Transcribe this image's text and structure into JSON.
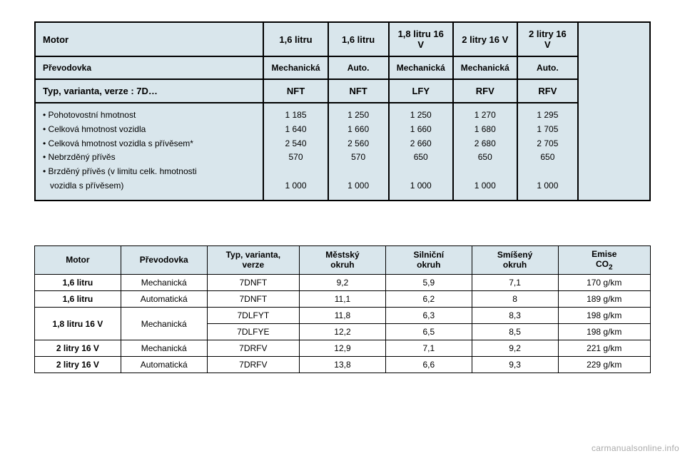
{
  "table1": {
    "header_motor": "Motor",
    "engines": [
      "1,6 litru",
      "1,6 litru",
      "1,8 litru 16 V",
      "2 litry 16 V",
      "2 litry 16 V"
    ],
    "header_prevodovka": "Převodovka",
    "gearboxes": [
      "Mechanická",
      "Auto.",
      "Mechanická",
      "Mechanická",
      "Auto."
    ],
    "header_typ": "Typ, varianta, verze : 7D…",
    "codes": [
      "NFT",
      "NFT",
      "LFY",
      "RFV",
      "RFV"
    ],
    "labels": [
      "Pohotovostní hmotnost",
      "Celková hmotnost vozidla",
      "Celková hmotnost vozidla s přívěsem*",
      "Nebrzděný přívěs",
      "Brzděný přívěs (v limitu celk. hmotnosti",
      "vozidla s přívěsem)"
    ],
    "col1": [
      "1 185",
      "1 640",
      "2 540",
      "570",
      "",
      "1 000"
    ],
    "col2": [
      "1 250",
      "1 660",
      "2 560",
      "570",
      "",
      "1 000"
    ],
    "col3": [
      "1 250",
      "1 660",
      "2 660",
      "650",
      "",
      "1 000"
    ],
    "col4": [
      "1 270",
      "1 680",
      "2 680",
      "650",
      "",
      "1 000"
    ],
    "col5": [
      "1 295",
      "1 705",
      "2 705",
      "650",
      "",
      "1 000"
    ]
  },
  "table2": {
    "headers": [
      "Motor",
      "Převodovka",
      "Typ, varianta,\nverze",
      "Městský\nokruh",
      "Silniční\nokruh",
      "Smíšený\nokruh",
      "Emise\nCO₂"
    ],
    "rows": [
      {
        "motor": "1,6 litru",
        "gear": "Mechanická",
        "typ": "7DNFT",
        "m": "9,2",
        "s": "5,9",
        "sm": "7,1",
        "co2": "170 g/km"
      },
      {
        "motor": "1,6 litru",
        "gear": "Automatická",
        "typ": "7DNFT",
        "m": "11,1",
        "s": "6,2",
        "sm": "8",
        "co2": "189 g/km"
      }
    ],
    "row18": {
      "motor": "1,8 litru 16 V",
      "gear": "Mechanická",
      "sub": [
        {
          "typ": "7DLFYT",
          "m": "11,8",
          "s": "6,3",
          "sm": "8,3",
          "co2": "198 g/km"
        },
        {
          "typ": "7DLFYE",
          "m": "12,2",
          "s": "6,5",
          "sm": "8,5",
          "co2": "198 g/km"
        }
      ]
    },
    "rows2": [
      {
        "motor": "2 litry 16 V",
        "gear": "Mechanická",
        "typ": "7DRFV",
        "m": "12,9",
        "s": "7,1",
        "sm": "9,2",
        "co2": "221 g/km"
      },
      {
        "motor": "2 litry 16 V",
        "gear": "Automatická",
        "typ": "7DRFV",
        "m": "13,8",
        "s": "6,6",
        "sm": "9,3",
        "co2": "229 g/km"
      }
    ]
  },
  "watermark": "carmanualsonline.info",
  "style": {
    "header_bg": "#d9e6ec",
    "border_color": "#000000",
    "font_body": 12,
    "font_header": 13,
    "page_bg": "#ffffff"
  }
}
